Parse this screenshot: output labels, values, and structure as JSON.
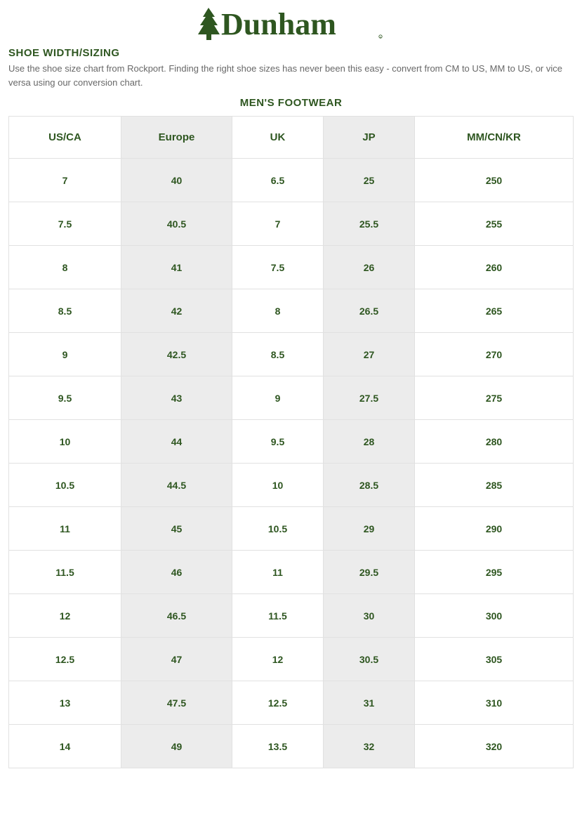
{
  "brand": {
    "name": "Dunham",
    "logo_color": "#2e5620"
  },
  "section_title": "SHOE WIDTH/SIZING",
  "description": "Use the shoe size chart from Rockport. Finding the right shoe sizes has never been this easy - convert from CM to US, MM to US, or vice versa using our conversion chart.",
  "table_title": "MEN'S FOOTWEAR",
  "columns": [
    {
      "key": "us_ca",
      "label": "US/CA",
      "shaded": false
    },
    {
      "key": "europe",
      "label": "Europe",
      "shaded": true
    },
    {
      "key": "uk",
      "label": "UK",
      "shaded": false
    },
    {
      "key": "jp",
      "label": "JP",
      "shaded": true
    },
    {
      "key": "mm_cn_kr",
      "label": "MM/CN/KR",
      "shaded": false
    }
  ],
  "rows": [
    {
      "us_ca": "7",
      "europe": "40",
      "uk": "6.5",
      "jp": "25",
      "mm_cn_kr": "250"
    },
    {
      "us_ca": "7.5",
      "europe": "40.5",
      "uk": "7",
      "jp": "25.5",
      "mm_cn_kr": "255"
    },
    {
      "us_ca": "8",
      "europe": "41",
      "uk": "7.5",
      "jp": "26",
      "mm_cn_kr": "260"
    },
    {
      "us_ca": "8.5",
      "europe": "42",
      "uk": "8",
      "jp": "26.5",
      "mm_cn_kr": "265"
    },
    {
      "us_ca": "9",
      "europe": "42.5",
      "uk": "8.5",
      "jp": "27",
      "mm_cn_kr": "270"
    },
    {
      "us_ca": "9.5",
      "europe": "43",
      "uk": "9",
      "jp": "27.5",
      "mm_cn_kr": "275"
    },
    {
      "us_ca": "10",
      "europe": "44",
      "uk": "9.5",
      "jp": "28",
      "mm_cn_kr": "280"
    },
    {
      "us_ca": "10.5",
      "europe": "44.5",
      "uk": "10",
      "jp": "28.5",
      "mm_cn_kr": "285"
    },
    {
      "us_ca": "11",
      "europe": "45",
      "uk": "10.5",
      "jp": "29",
      "mm_cn_kr": "290"
    },
    {
      "us_ca": "11.5",
      "europe": "46",
      "uk": "11",
      "jp": "29.5",
      "mm_cn_kr": "295"
    },
    {
      "us_ca": "12",
      "europe": "46.5",
      "uk": "11.5",
      "jp": "30",
      "mm_cn_kr": "300"
    },
    {
      "us_ca": "12.5",
      "europe": "47",
      "uk": "12",
      "jp": "30.5",
      "mm_cn_kr": "305"
    },
    {
      "us_ca": "13",
      "europe": "47.5",
      "uk": "12.5",
      "jp": "31",
      "mm_cn_kr": "310"
    },
    {
      "us_ca": "14",
      "europe": "49",
      "uk": "13.5",
      "jp": "32",
      "mm_cn_kr": "320"
    }
  ],
  "colors": {
    "text_primary": "#2e5620",
    "text_muted": "#686868",
    "border": "#e1e1e1",
    "shade_bg": "#ececec",
    "page_bg": "#ffffff"
  }
}
